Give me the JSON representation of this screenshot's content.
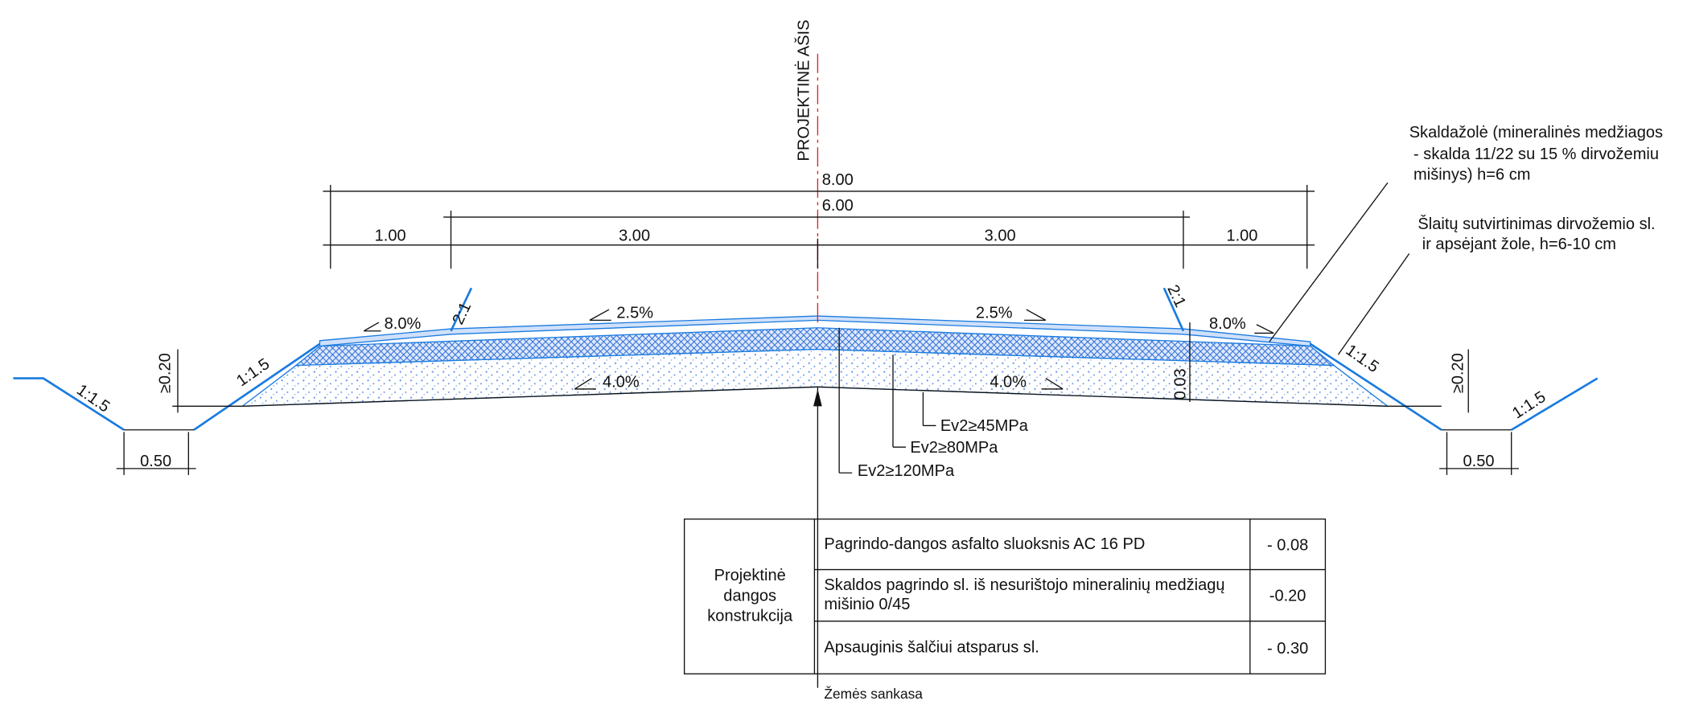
{
  "axis_label": "PROJEKTINĖ  AŠIS",
  "dimensions": {
    "total": "8.00",
    "carriageway": "6.00",
    "shoulder_left": "1.00",
    "lane_left": "3.00",
    "lane_right": "3.00",
    "shoulder_right": "1.00",
    "ditch_left": "0.50",
    "ditch_right": "0.50",
    "ditch_depth_left": "≥0.20",
    "ditch_depth_right": "≥0.20",
    "layer": "0.03"
  },
  "slopes": {
    "shoulder_left": "8.0%",
    "lane_left": "2.5%",
    "lane_right": "2.5%",
    "shoulder_right": "8.0%",
    "subgrade_left": "4.0%",
    "subgrade_right": "4.0%",
    "edge_left": "2:1",
    "edge_right": "2:1",
    "embankment_left": "1:1.5",
    "embankment_right": "1:1.5",
    "ditch_left": "1:1.5",
    "ditch_right": "1:1.5"
  },
  "moduli": [
    "Ev2≥45MPa",
    "Ev2≥80MPa",
    "Ev2≥120MPa"
  ],
  "notes": [
    {
      "lines": [
        "Skaldažolė (mineralinės medžiagos",
        "- skalda 11/22  su 15 % dirvožemiu",
        "mišinys) h=6 cm"
      ]
    },
    {
      "lines": [
        "Šlaitų sutvirtinimas dirvožemio sl.",
        "ir apsėjant žole, h=6-10 cm"
      ]
    }
  ],
  "table": {
    "header": [
      "Projektinė",
      "dangos",
      "konstrukcija"
    ],
    "rows": [
      {
        "layer": [
          "Pagrindo-dangos asfalto sluoksnis AC 16 PD"
        ],
        "thickness": "- 0.08"
      },
      {
        "layer": [
          "Skaldos pagrindo sl. iš nesurištojo mineralinių medžiagų",
          "mišinio 0/45"
        ],
        "thickness": "-0.20"
      },
      {
        "layer": [
          "Apsauginis šalčiui atsparus sl."
        ],
        "thickness": "- 0.30"
      }
    ]
  },
  "footer": "Žemės sankasa"
}
